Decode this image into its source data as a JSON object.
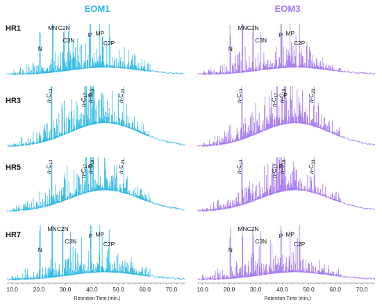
{
  "chart_data": {
    "type": "line",
    "title": "",
    "columns": [
      {
        "title": "EOM1",
        "color": "#29b6e3"
      },
      {
        "title": "EOM3",
        "color": "#a173f0"
      }
    ],
    "rows": [
      {
        "label": "HR1"
      },
      {
        "label": "HR3"
      },
      {
        "label": "HR5"
      },
      {
        "label": "HR7"
      }
    ],
    "xlabel": "Retention Time (min.)",
    "xlim": [
      8,
      75
    ],
    "xticks": [
      "10.0",
      "20.0",
      "30.0",
      "40.0",
      "50.0",
      "60.0",
      "70.0"
    ],
    "xtick_values": [
      10,
      20,
      30,
      40,
      50,
      60,
      70
    ],
    "panels": [
      {
        "column": 0,
        "row": 0,
        "color": "#29b6e3",
        "labels": [
          {
            "text": "MN",
            "x": 25.2
          },
          {
            "text": "C2N",
            "x": 29.5
          },
          {
            "text": "C3N",
            "x": 31.3
          },
          {
            "text": "N",
            "x": 20.5
          },
          {
            "text": "P",
            "x": 39.3
          },
          {
            "text": "MP",
            "x": 43.0
          },
          {
            "text": "C2P",
            "x": 46.5
          }
        ]
      },
      {
        "column": 1,
        "row": 0,
        "color": "#a173f0",
        "labels": [
          {
            "text": "MN",
            "x": 25.0
          },
          {
            "text": "C2N",
            "x": 29.0
          },
          {
            "text": "C3N",
            "x": 32.0
          },
          {
            "text": "N",
            "x": 20.5
          },
          {
            "text": "P",
            "x": 39.5
          },
          {
            "text": "MP",
            "x": 43.0
          },
          {
            "text": "C2P",
            "x": 46.5
          }
        ]
      },
      {
        "column": 0,
        "row": 1,
        "color": "#29b6e3",
        "labels": [
          {
            "text": "n-C13",
            "x": 24.8,
            "vertical": true
          },
          {
            "text": "n-C17",
            "x": 37.8,
            "vertical": true
          },
          {
            "text": "n-C18",
            "x": 40.5,
            "vertical": true
          },
          {
            "text": "P",
            "x": 39.5
          },
          {
            "text": "n-C23",
            "x": 52.0,
            "vertical": true
          }
        ]
      },
      {
        "column": 1,
        "row": 1,
        "color": "#a173f0",
        "labels": [
          {
            "text": "n-C13",
            "x": 24.8,
            "vertical": true
          },
          {
            "text": "n-C17",
            "x": 38.0,
            "vertical": true
          },
          {
            "text": "n-C18",
            "x": 40.8,
            "vertical": true
          },
          {
            "text": "P",
            "x": 41.3
          },
          {
            "text": "n-C23",
            "x": 52.0,
            "vertical": true
          }
        ]
      },
      {
        "column": 0,
        "row": 2,
        "color": "#29b6e3",
        "labels": [
          {
            "text": "n-C13",
            "x": 24.8,
            "vertical": true
          },
          {
            "text": "n-C17",
            "x": 37.8,
            "vertical": true
          },
          {
            "text": "n-C18",
            "x": 40.5,
            "vertical": true
          },
          {
            "text": "P",
            "x": 39.5
          },
          {
            "text": "n-C23",
            "x": 52.0,
            "vertical": true
          }
        ]
      },
      {
        "column": 1,
        "row": 2,
        "color": "#a173f0",
        "labels": [
          {
            "text": "n-C13",
            "x": 24.8,
            "vertical": true
          },
          {
            "text": "n-C17",
            "x": 38.0,
            "vertical": true
          },
          {
            "text": "n-C18",
            "x": 40.8,
            "vertical": true
          },
          {
            "text": "P",
            "x": 39.5
          },
          {
            "text": "n-C23",
            "x": 52.0,
            "vertical": true
          }
        ]
      },
      {
        "column": 0,
        "row": 3,
        "color": "#29b6e3",
        "labels": [
          {
            "text": "N",
            "x": 20.5
          },
          {
            "text": "MN",
            "x": 25.0
          },
          {
            "text": "C2N",
            "x": 29.0
          },
          {
            "text": "C3N",
            "x": 32.0
          },
          {
            "text": "P",
            "x": 39.5
          },
          {
            "text": "MP",
            "x": 43.0
          },
          {
            "text": "C2P",
            "x": 46.5
          }
        ]
      },
      {
        "column": 1,
        "row": 3,
        "color": "#a173f0",
        "labels": [
          {
            "text": "N",
            "x": 20.5
          },
          {
            "text": "MN",
            "x": 25.0
          },
          {
            "text": "C2N",
            "x": 29.0
          },
          {
            "text": "C3N",
            "x": 32.0
          },
          {
            "text": "P",
            "x": 39.5
          },
          {
            "text": "MP",
            "x": 43.0
          },
          {
            "text": "C2P",
            "x": 46.5
          }
        ]
      }
    ]
  }
}
